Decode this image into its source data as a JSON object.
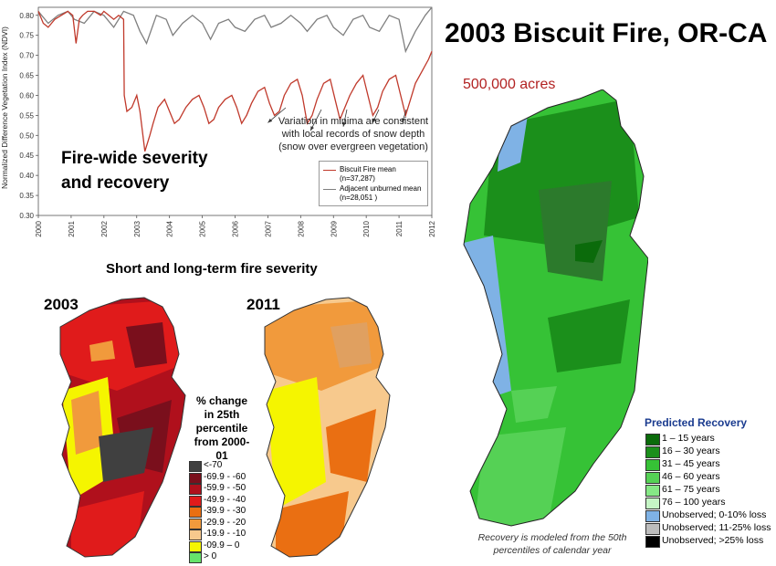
{
  "page": {
    "main_title": "2003 Biscuit Fire, OR-CA",
    "acres": "500,000 acres",
    "firewide_title_line1": "Fire-wide severity",
    "firewide_title_line2": "and recovery",
    "snow_note_line1": "Variation in minima are consistent",
    "snow_note_line2": "with local records of snow depth",
    "snow_note_line3": "(snow over evergreen vegetation)",
    "severity_title": "Short and long-term fire severity",
    "year_left": "2003",
    "year_right": "2011",
    "pct_change_title": [
      "% change",
      "in 25th",
      "percentile",
      "from 2000-01"
    ],
    "recovery_title": "Predicted Recovery",
    "recovery_note": "Recovery is modeled from the 50th percentiles of calendar year"
  },
  "colors": {
    "fire_series": "#c0392b",
    "adjacent_series": "#7f7f7f",
    "title_red": "#b22222",
    "recovery_title": "#1a3b8f"
  },
  "chart_data": [
    {
      "type": "line",
      "title": "",
      "ylabel": "Normalized Difference Vegetation Index (NDVI)",
      "xlabel": "",
      "x_ticks": [
        "2000",
        "2001",
        "2002",
        "2003",
        "2004",
        "2005",
        "2006",
        "2007",
        "2008",
        "2009",
        "2010",
        "2011",
        "2012"
      ],
      "y_ticks": [
        "0.30",
        "0.35",
        "0.40",
        "0.45",
        "0.50",
        "0.55",
        "0.60",
        "0.65",
        "0.70",
        "0.75",
        "0.80"
      ],
      "xlim": [
        2000,
        2012
      ],
      "ylim": [
        0.3,
        0.82
      ],
      "grid": false,
      "legend_position": "bottom-right",
      "series": [
        {
          "name": "Biscuit Fire mean",
          "count_label": "(n=37,287)",
          "color": "#c0392b",
          "x": [
            2000.0,
            2000.15,
            2000.3,
            2000.5,
            2000.7,
            2000.9,
            2001.05,
            2001.15,
            2001.25,
            2001.35,
            2001.5,
            2001.7,
            2001.9,
            2002.0,
            2002.15,
            2002.3,
            2002.45,
            2002.6,
            2002.62,
            2002.7,
            2002.85,
            2003.0,
            2003.1,
            2003.25,
            2003.4,
            2003.5,
            2003.65,
            2003.85,
            2004.0,
            2004.15,
            2004.3,
            2004.5,
            2004.7,
            2004.9,
            2005.05,
            2005.2,
            2005.35,
            2005.5,
            2005.7,
            2005.9,
            2006.05,
            2006.2,
            2006.35,
            2006.5,
            2006.7,
            2006.9,
            2007.05,
            2007.2,
            2007.35,
            2007.5,
            2007.7,
            2007.9,
            2008.05,
            2008.2,
            2008.35,
            2008.5,
            2008.7,
            2008.9,
            2009.05,
            2009.2,
            2009.35,
            2009.5,
            2009.7,
            2009.9,
            2010.05,
            2010.2,
            2010.35,
            2010.5,
            2010.7,
            2010.9,
            2011.05,
            2011.2,
            2011.35,
            2011.5,
            2011.7,
            2011.9,
            2012.0
          ],
          "y": [
            0.81,
            0.78,
            0.77,
            0.79,
            0.8,
            0.81,
            0.8,
            0.73,
            0.79,
            0.8,
            0.81,
            0.81,
            0.8,
            0.81,
            0.8,
            0.79,
            0.8,
            0.79,
            0.6,
            0.56,
            0.57,
            0.6,
            0.56,
            0.46,
            0.5,
            0.53,
            0.57,
            0.59,
            0.56,
            0.53,
            0.54,
            0.57,
            0.59,
            0.6,
            0.57,
            0.53,
            0.54,
            0.57,
            0.59,
            0.6,
            0.57,
            0.53,
            0.55,
            0.58,
            0.61,
            0.62,
            0.58,
            0.55,
            0.56,
            0.6,
            0.63,
            0.64,
            0.6,
            0.53,
            0.55,
            0.59,
            0.63,
            0.64,
            0.59,
            0.54,
            0.57,
            0.6,
            0.63,
            0.65,
            0.6,
            0.55,
            0.57,
            0.61,
            0.64,
            0.65,
            0.6,
            0.55,
            0.59,
            0.63,
            0.66,
            0.69,
            0.71
          ]
        },
        {
          "name": "Adjacent unburned mean",
          "count_label": "(n=28,051 )",
          "color": "#7f7f7f",
          "x": [
            2000.0,
            2000.3,
            2000.6,
            2000.9,
            2001.1,
            2001.4,
            2001.7,
            2002.0,
            2002.3,
            2002.6,
            2002.9,
            2003.1,
            2003.3,
            2003.6,
            2003.9,
            2004.1,
            2004.4,
            2004.7,
            2005.0,
            2005.25,
            2005.5,
            2005.8,
            2006.0,
            2006.3,
            2006.6,
            2006.9,
            2007.1,
            2007.4,
            2007.7,
            2008.0,
            2008.2,
            2008.5,
            2008.8,
            2009.0,
            2009.3,
            2009.6,
            2009.9,
            2010.1,
            2010.4,
            2010.7,
            2011.0,
            2011.2,
            2011.5,
            2011.8,
            2012.0
          ],
          "y": [
            0.81,
            0.78,
            0.8,
            0.81,
            0.79,
            0.78,
            0.81,
            0.8,
            0.77,
            0.81,
            0.8,
            0.76,
            0.73,
            0.8,
            0.79,
            0.75,
            0.78,
            0.8,
            0.78,
            0.74,
            0.78,
            0.79,
            0.77,
            0.76,
            0.79,
            0.8,
            0.77,
            0.78,
            0.8,
            0.78,
            0.76,
            0.79,
            0.8,
            0.77,
            0.75,
            0.79,
            0.8,
            0.77,
            0.76,
            0.8,
            0.79,
            0.71,
            0.76,
            0.8,
            0.82
          ]
        }
      ]
    }
  ],
  "severity_legend": [
    {
      "label": "<-70",
      "color": "#404040"
    },
    {
      "label": "-69.9 - -60",
      "color": "#7a0f1c"
    },
    {
      "label": "-59.9 - -50",
      "color": "#b0101c"
    },
    {
      "label": "-49.9 - -40",
      "color": "#e01b1b"
    },
    {
      "label": "-39.9 - -30",
      "color": "#ea6f12"
    },
    {
      "label": "-29.9 - -20",
      "color": "#f19a3c"
    },
    {
      "label": "-19.9 - -10",
      "color": "#f7c98d"
    },
    {
      "label": "-09.9 – 0",
      "color": "#f5f500"
    },
    {
      "label": "> 0",
      "color": "#66e36b"
    }
  ],
  "recovery_legend": [
    {
      "label": "1 – 15 years",
      "color": "#0b6b0b"
    },
    {
      "label": "16 – 30 years",
      "color": "#1b8f1b"
    },
    {
      "label": "31 – 45 years",
      "color": "#36c236"
    },
    {
      "label": "46 – 60 years",
      "color": "#55d155"
    },
    {
      "label": "61 – 75 years",
      "color": "#86e886"
    },
    {
      "label": "76 – 100 years",
      "color": "#c5f5c5"
    },
    {
      "label": "Unobserved; 0-10% loss",
      "color": "#7fb2e5"
    },
    {
      "label": "Unobserved; 11-25% loss",
      "color": "#bdbdbd"
    },
    {
      "label": "Unobserved; >25% loss",
      "color": "#000000"
    }
  ]
}
